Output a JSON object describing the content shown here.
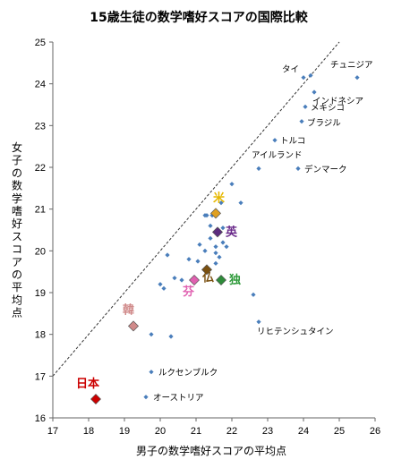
{
  "chart_data": {
    "type": "scatter",
    "title": "15歳生徒の数学嗜好スコアの国際比較",
    "xlabel": "男子の数学嗜好スコアの平均点",
    "ylabel": "女子の数学嗜好スコアの平均点",
    "xlim": [
      17,
      26
    ],
    "ylim": [
      16,
      25
    ],
    "xticks": [
      "17",
      "18",
      "19",
      "20",
      "21",
      "22",
      "23",
      "24",
      "25",
      "26"
    ],
    "yticks": [
      "16",
      "17",
      "18",
      "19",
      "20",
      "21",
      "22",
      "23",
      "24",
      "25"
    ],
    "grid": false,
    "reference_line": {
      "style": "dashed",
      "points": [
        [
          17,
          17
        ],
        [
          25,
          25
        ]
      ]
    },
    "point_color": "#4a7ebb",
    "points": [
      {
        "x": 24.0,
        "y": 24.15,
        "label": "タイ"
      },
      {
        "x": 24.2,
        "y": 24.2
      },
      {
        "x": 25.5,
        "y": 24.15,
        "label": "チュニジア"
      },
      {
        "x": 24.3,
        "y": 23.8,
        "label": "インドネシア"
      },
      {
        "x": 24.05,
        "y": 23.45,
        "label": "メキシコ"
      },
      {
        "x": 23.95,
        "y": 23.1,
        "label": "ブラジル"
      },
      {
        "x": 23.2,
        "y": 22.65,
        "label": "トルコ"
      },
      {
        "x": 22.75,
        "y": 21.97,
        "label": "アイルランド"
      },
      {
        "x": 23.85,
        "y": 21.97,
        "label": "デンマーク"
      },
      {
        "x": 22.0,
        "y": 21.6
      },
      {
        "x": 22.25,
        "y": 21.15
      },
      {
        "x": 21.7,
        "y": 21.15
      },
      {
        "x": 21.25,
        "y": 20.85
      },
      {
        "x": 21.3,
        "y": 20.85
      },
      {
        "x": 21.45,
        "y": 20.85
      },
      {
        "x": 21.4,
        "y": 20.6
      },
      {
        "x": 21.75,
        "y": 20.55
      },
      {
        "x": 21.1,
        "y": 20.15
      },
      {
        "x": 21.4,
        "y": 20.3
      },
      {
        "x": 21.55,
        "y": 20.1
      },
      {
        "x": 21.25,
        "y": 20.0
      },
      {
        "x": 21.55,
        "y": 19.95
      },
      {
        "x": 21.75,
        "y": 20.2
      },
      {
        "x": 21.85,
        "y": 20.1
      },
      {
        "x": 21.65,
        "y": 19.85
      },
      {
        "x": 21.3,
        "y": 19.6
      },
      {
        "x": 20.2,
        "y": 19.9
      },
      {
        "x": 20.8,
        "y": 19.8
      },
      {
        "x": 21.05,
        "y": 19.75
      },
      {
        "x": 21.55,
        "y": 19.7
      },
      {
        "x": 20.4,
        "y": 19.35
      },
      {
        "x": 20.6,
        "y": 19.3
      },
      {
        "x": 20.0,
        "y": 19.2
      },
      {
        "x": 20.1,
        "y": 19.1
      },
      {
        "x": 22.6,
        "y": 18.95
      },
      {
        "x": 22.75,
        "y": 18.3,
        "label": "リヒテンシュタイン"
      },
      {
        "x": 19.75,
        "y": 18.0
      },
      {
        "x": 20.3,
        "y": 17.95
      },
      {
        "x": 19.75,
        "y": 17.1,
        "label": "ルクセンブルク"
      },
      {
        "x": 19.6,
        "y": 16.5,
        "label": "オーストリア"
      }
    ],
    "highlighted": [
      {
        "label": "米",
        "x": 21.55,
        "y": 20.9,
        "color": "#e0a020",
        "label_color": "#e6b800"
      },
      {
        "label": "英",
        "x": 21.6,
        "y": 20.45,
        "color": "#5b2c7e",
        "label_color": "#6a2a8a"
      },
      {
        "label": "仏",
        "x": 21.3,
        "y": 19.55,
        "color": "#7a5010",
        "label_color": "#7a5010"
      },
      {
        "label": "独",
        "x": 21.7,
        "y": 19.3,
        "color": "#2e8b3a",
        "label_color": "#2e9a3a"
      },
      {
        "label": "芬",
        "x": 20.95,
        "y": 19.3,
        "color": "#e060b0",
        "label_color": "#e060b0"
      },
      {
        "label": "韓",
        "x": 19.25,
        "y": 18.2,
        "color": "#d08a8a",
        "label_color": "#d08a8a"
      },
      {
        "label": "日本",
        "x": 18.2,
        "y": 16.45,
        "color": "#cc0000",
        "label_color": "#cc0000"
      }
    ]
  }
}
